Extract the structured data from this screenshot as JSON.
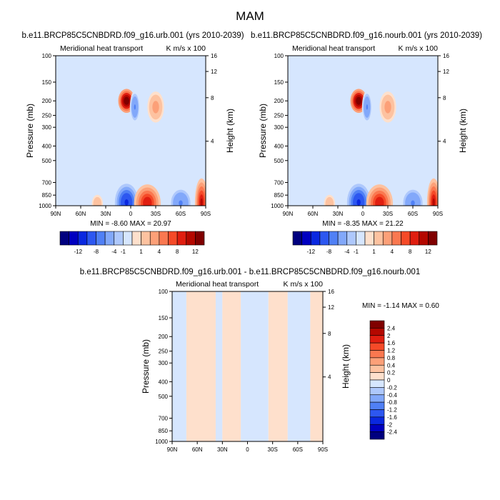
{
  "figure": {
    "title": "MAM"
  },
  "chart_data": [
    {
      "type": "heatmap",
      "title": "b.e11.BRCP85C5CNBDRD.f09_g16.urb.001 (yrs 2010-2039)",
      "left_string": "Meridional heat transport",
      "right_string": "K m/s x 100",
      "xlabel": "",
      "ylabel": "Pressure (mb)",
      "y2label": "Height (km)",
      "x_ticks": [
        "90N",
        "60N",
        "30N",
        "0",
        "30S",
        "60S",
        "90S"
      ],
      "y_ticks": [
        "100",
        "150",
        "200",
        "250",
        "300",
        "400",
        "500",
        "700",
        "850",
        "1000"
      ],
      "y2_ticks": [
        "16",
        "12",
        "8",
        "4"
      ],
      "stats": "MIN = -8.60   MAX = 20.97",
      "colorbar_labels": [
        "-12",
        "-8",
        "-4",
        "-1",
        "1",
        "4",
        "8",
        "12"
      ],
      "colorbar_colors": [
        "#00007f",
        "#0000c0",
        "#0a28e0",
        "#2d57f0",
        "#5080f5",
        "#82a8fa",
        "#aec8fc",
        "#d6e6fe",
        "#fee0cc",
        "#fdc2a0",
        "#fca078",
        "#fa7850",
        "#f54a28",
        "#e01e10",
        "#b40800",
        "#800000"
      ],
      "features": [
        {
          "lat": 5,
          "p": 200,
          "value": 18,
          "sx": 5,
          "sp": 45
        },
        {
          "lat": -5,
          "p": 220,
          "value": -4,
          "sx": 3,
          "sp": 60
        },
        {
          "lat": -30,
          "p": 220,
          "value": 3,
          "sx": 6,
          "sp": 70
        },
        {
          "lat": 5,
          "p": 950,
          "value": -9,
          "sx": 7,
          "sp": 70
        },
        {
          "lat": -20,
          "p": 960,
          "value": 10,
          "sx": 8,
          "sp": 70
        },
        {
          "lat": -60,
          "p": 960,
          "value": -4,
          "sx": 7,
          "sp": 60
        },
        {
          "lat": 40,
          "p": 970,
          "value": 2,
          "sx": 5,
          "sp": 50
        },
        {
          "lat": -85,
          "p": 950,
          "value": 12,
          "sx": 4,
          "sp": 90
        }
      ]
    },
    {
      "type": "heatmap",
      "title": "b.e11.BRCP85C5CNBDRD.f09_g16.nourb.001 (yrs 2010-2039)",
      "left_string": "Meridional heat transport",
      "right_string": "K m/s x 100",
      "xlabel": "",
      "ylabel": "Pressure (mb)",
      "y2label": "Height (km)",
      "x_ticks": [
        "90N",
        "60N",
        "30N",
        "0",
        "30S",
        "60S",
        "90S"
      ],
      "y_ticks": [
        "100",
        "150",
        "200",
        "250",
        "300",
        "400",
        "500",
        "700",
        "850",
        "1000"
      ],
      "y2_ticks": [
        "16",
        "12",
        "8",
        "4"
      ],
      "stats": "MIN = -8.35   MAX = 21.22",
      "colorbar_labels": [
        "-12",
        "-8",
        "-4",
        "-1",
        "1",
        "4",
        "8",
        "12"
      ],
      "colorbar_colors": [
        "#00007f",
        "#0000c0",
        "#0a28e0",
        "#2d57f0",
        "#5080f5",
        "#82a8fa",
        "#aec8fc",
        "#d6e6fe",
        "#fee0cc",
        "#fdc2a0",
        "#fca078",
        "#fa7850",
        "#f54a28",
        "#e01e10",
        "#b40800",
        "#800000"
      ],
      "features": [
        {
          "lat": 5,
          "p": 200,
          "value": 18,
          "sx": 5,
          "sp": 45
        },
        {
          "lat": -5,
          "p": 220,
          "value": -4,
          "sx": 3,
          "sp": 60
        },
        {
          "lat": -30,
          "p": 220,
          "value": 3,
          "sx": 6,
          "sp": 70
        },
        {
          "lat": 5,
          "p": 950,
          "value": -9,
          "sx": 7,
          "sp": 70
        },
        {
          "lat": -20,
          "p": 960,
          "value": 10,
          "sx": 8,
          "sp": 70
        },
        {
          "lat": -60,
          "p": 960,
          "value": -4,
          "sx": 7,
          "sp": 60
        },
        {
          "lat": 40,
          "p": 970,
          "value": 2,
          "sx": 5,
          "sp": 50
        },
        {
          "lat": -85,
          "p": 950,
          "value": 12,
          "sx": 4,
          "sp": 90
        }
      ]
    },
    {
      "type": "heatmap",
      "title": "b.e11.BRCP85C5CNBDRD.f09_g16.urb.001 - b.e11.BRCP85C5CNBDRD.f09_g16.nourb.001",
      "left_string": "Meridional heat transport",
      "right_string": "K m/s x 100",
      "xlabel": "",
      "ylabel": "Pressure (mb)",
      "y2label": "Height (km)",
      "x_ticks": [
        "90N",
        "60N",
        "30N",
        "0",
        "30S",
        "60S",
        "90S"
      ],
      "y_ticks": [
        "100",
        "150",
        "200",
        "250",
        "300",
        "400",
        "500",
        "700",
        "850",
        "1000"
      ],
      "y2_ticks": [
        "16",
        "12",
        "8",
        "4"
      ],
      "stats": "MIN = -1.14   MAX =  0.60",
      "colorbar_labels": [
        "2.4",
        "2",
        "1.6",
        "1.2",
        "0.8",
        "0.4",
        "0.2",
        "0",
        "-0.2",
        "-0.4",
        "-0.8",
        "-1.2",
        "-1.6",
        "-2",
        "-2.4"
      ],
      "colorbar_colors": [
        "#800000",
        "#b40800",
        "#e01e10",
        "#f54a28",
        "#fa7850",
        "#fca078",
        "#fdc2a0",
        "#fee0cc",
        "#d6e6fe",
        "#aec8fc",
        "#82a8fa",
        "#5080f5",
        "#2d57f0",
        "#0a28e0",
        "#0000c0",
        "#00007f"
      ],
      "bands": [
        {
          "from_lat": 90,
          "to_lat": 73,
          "sign": "neg"
        },
        {
          "from_lat": 73,
          "to_lat": 38,
          "sign": "pos"
        },
        {
          "from_lat": 38,
          "to_lat": 30,
          "sign": "neg"
        },
        {
          "from_lat": 30,
          "to_lat": 8,
          "sign": "pos"
        },
        {
          "from_lat": 8,
          "to_lat": -25,
          "sign": "neg"
        },
        {
          "from_lat": -25,
          "to_lat": -48,
          "sign": "pos"
        },
        {
          "from_lat": -48,
          "to_lat": -75,
          "sign": "neg"
        },
        {
          "from_lat": -75,
          "to_lat": -90,
          "sign": "pos"
        }
      ]
    }
  ]
}
